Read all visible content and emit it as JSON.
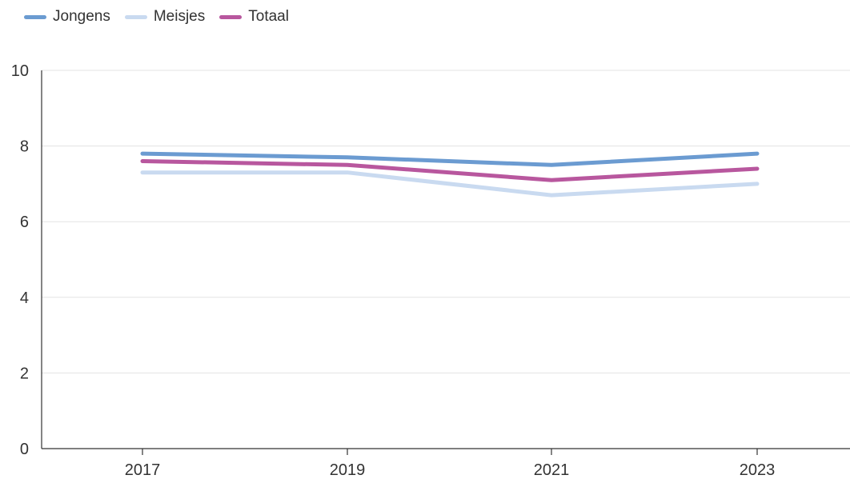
{
  "chart_data": {
    "type": "line",
    "title": "",
    "xlabel": "",
    "ylabel": "",
    "x": [
      "2017",
      "2019",
      "2021",
      "2023"
    ],
    "ylim": [
      0,
      10
    ],
    "yticks": [
      "0",
      "2",
      "4",
      "6",
      "8",
      "10"
    ],
    "grid": true,
    "legend_position": "top-left",
    "series": [
      {
        "name": "Jongens",
        "color": "#6b9bd1",
        "values": [
          7.8,
          7.7,
          7.5,
          7.8
        ]
      },
      {
        "name": "Meisjes",
        "color": "#c9daf0",
        "values": [
          7.3,
          7.3,
          6.7,
          7.0
        ]
      },
      {
        "name": "Totaal",
        "color": "#b8579e",
        "values": [
          7.6,
          7.5,
          7.1,
          7.4
        ]
      }
    ]
  }
}
